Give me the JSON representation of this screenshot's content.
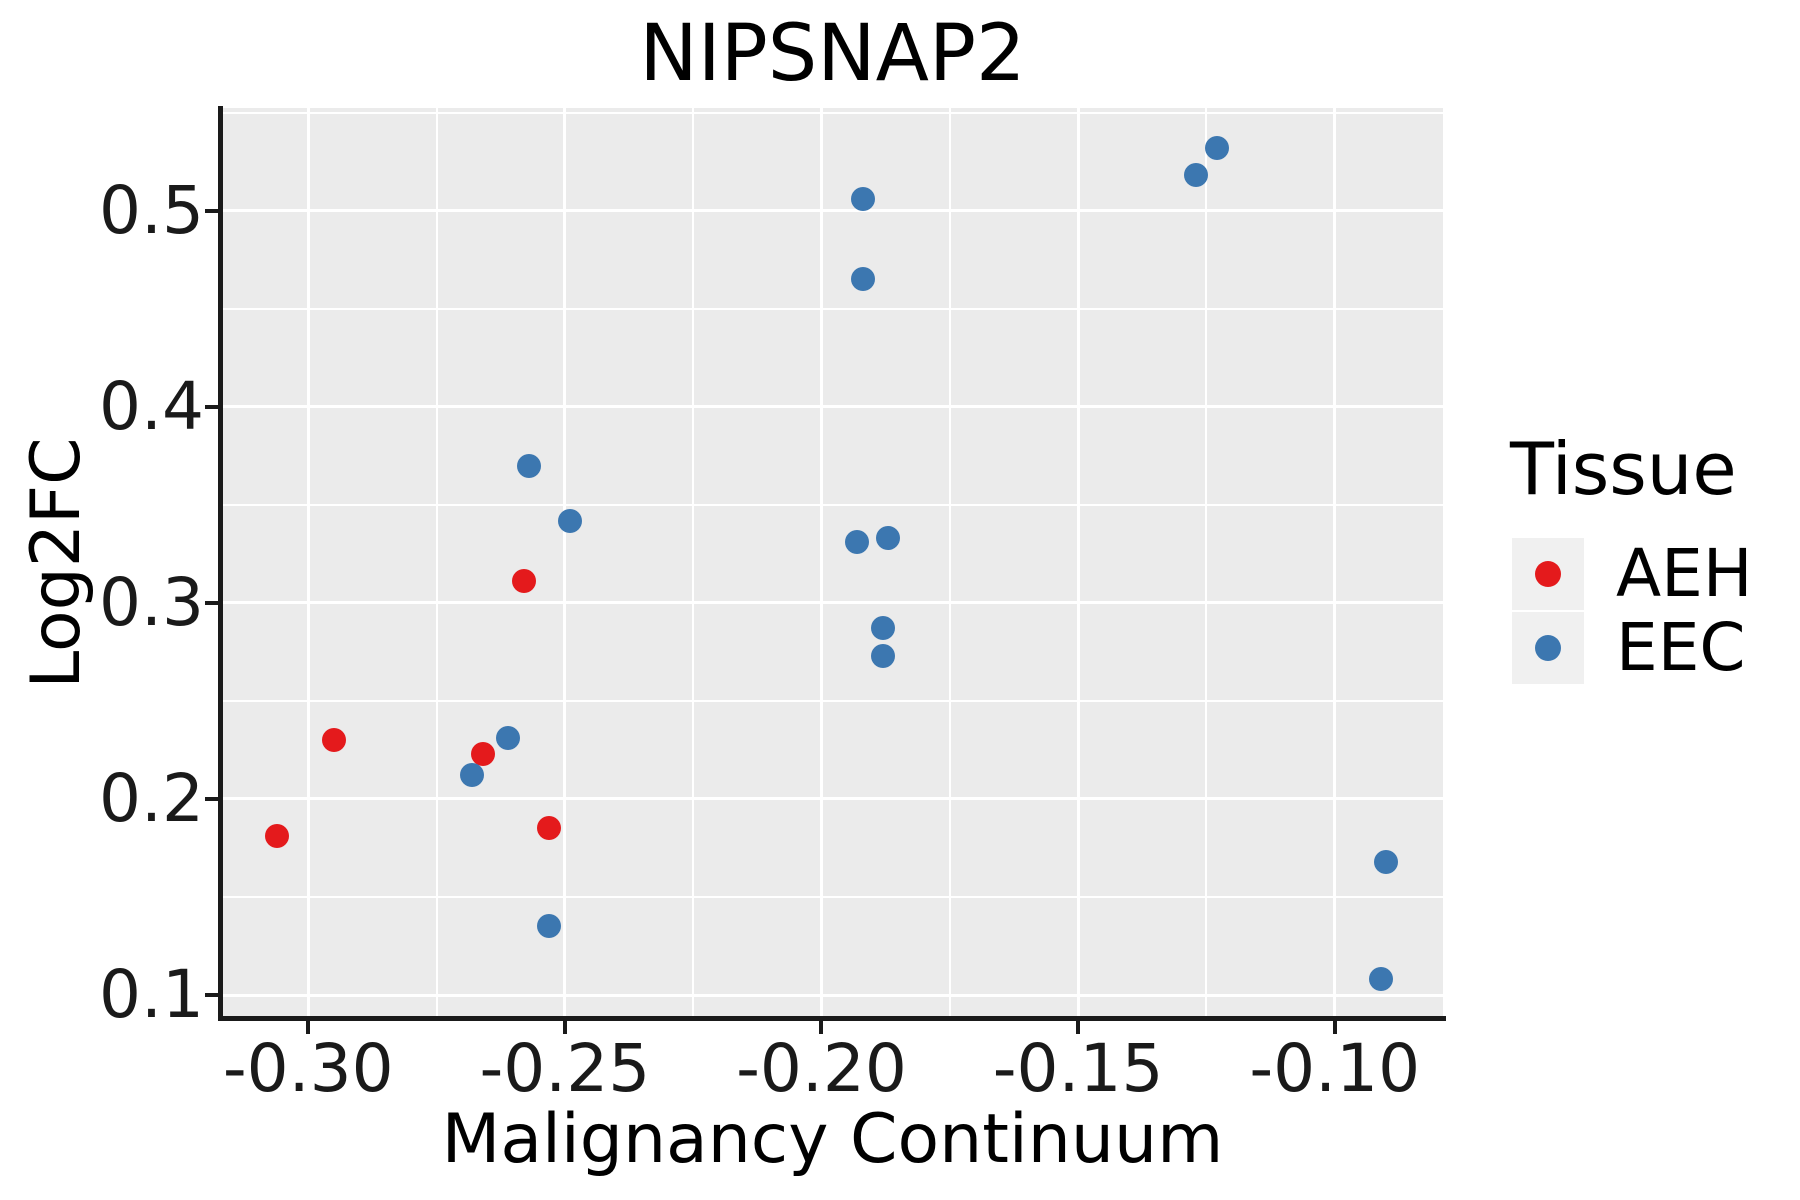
{
  "chart_data": {
    "type": "scatter",
    "title": "NIPSNAP2",
    "xlabel": "Malignancy Continuum",
    "ylabel": "Log2FC",
    "xlim": [
      -0.3168,
      -0.0789
    ],
    "ylim": [
      0.0878,
      0.5524
    ],
    "x_ticks": [
      -0.3,
      -0.25,
      -0.2,
      -0.15,
      -0.1
    ],
    "x_tick_labels": [
      "-0.30",
      "-0.25",
      "-0.20",
      "-0.15",
      "-0.10"
    ],
    "x_minor_ticks": [
      -0.275,
      -0.225,
      -0.175,
      -0.125
    ],
    "y_ticks": [
      0.1,
      0.2,
      0.3,
      0.4,
      0.5
    ],
    "y_tick_labels": [
      "0.1",
      "0.2",
      "0.3",
      "0.4",
      "0.5"
    ],
    "y_minor_ticks": [
      0.15,
      0.25,
      0.35,
      0.45,
      0.55
    ],
    "grid": true,
    "legend_position": "right",
    "legend_title": "Tissue",
    "series": [
      {
        "name": "AEH",
        "color": "#E41A1C",
        "points": [
          [
            -0.306,
            0.181
          ],
          [
            -0.295,
            0.23
          ],
          [
            -0.266,
            0.223
          ],
          [
            -0.258,
            0.311
          ],
          [
            -0.253,
            0.185
          ]
        ]
      },
      {
        "name": "EEC",
        "color": "#3C77B0",
        "points": [
          [
            -0.268,
            0.212
          ],
          [
            -0.261,
            0.231
          ],
          [
            -0.257,
            0.37
          ],
          [
            -0.253,
            0.135
          ],
          [
            -0.249,
            0.342
          ],
          [
            -0.193,
            0.331
          ],
          [
            -0.192,
            0.506
          ],
          [
            -0.192,
            0.465
          ],
          [
            -0.188,
            0.287
          ],
          [
            -0.188,
            0.273
          ],
          [
            -0.187,
            0.333
          ],
          [
            -0.127,
            0.518
          ],
          [
            -0.123,
            0.532
          ],
          [
            -0.091,
            0.108
          ],
          [
            -0.09,
            0.168
          ]
        ]
      }
    ],
    "styles": {
      "panel_bg": "#EBEBEB",
      "grid_color": "#FFFFFF",
      "axis_color": "#1A1A1A",
      "legend_key_bg": "#F0F0F0"
    }
  }
}
